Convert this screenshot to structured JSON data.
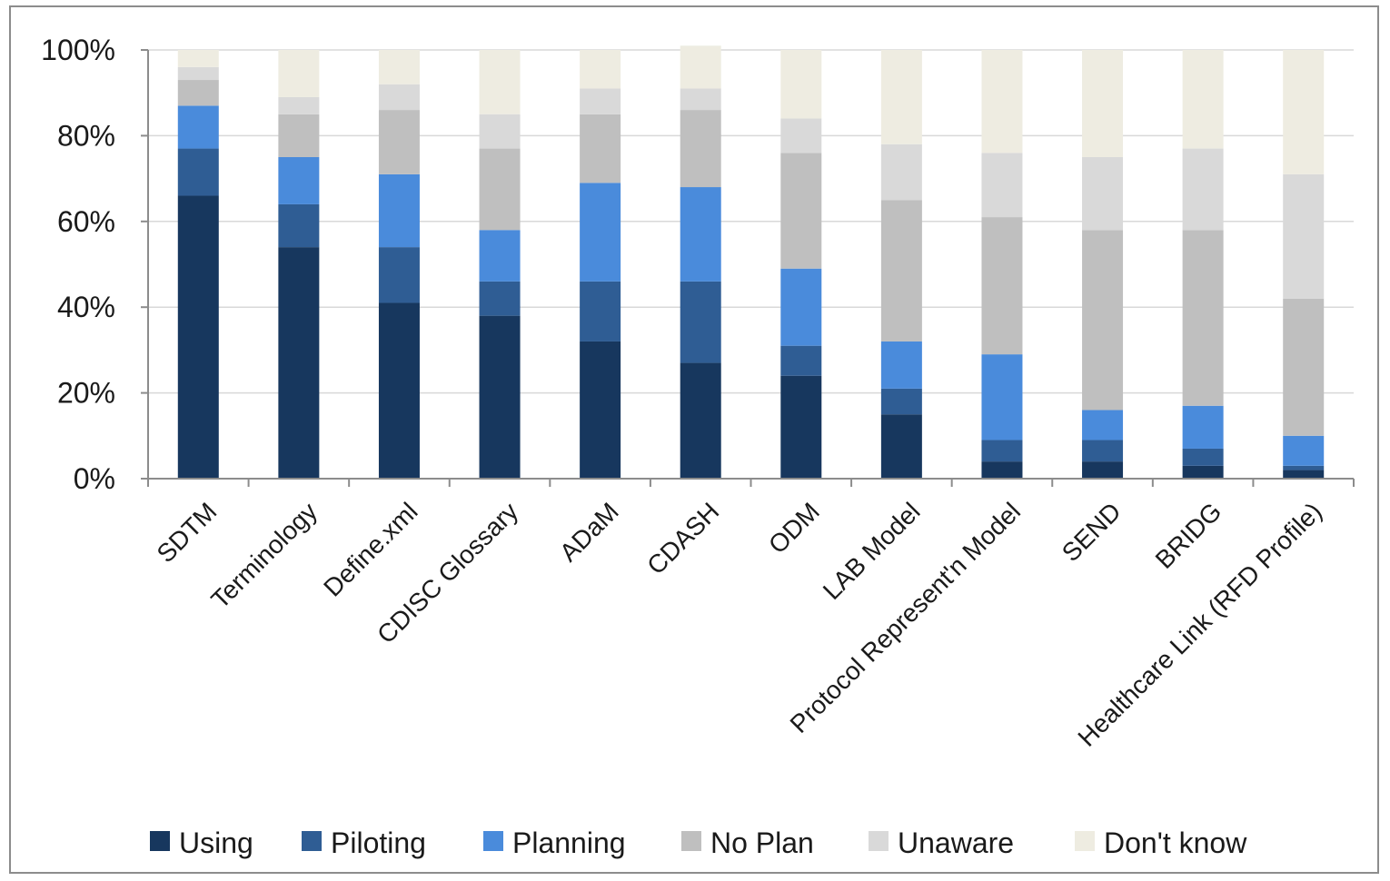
{
  "chart_data": {
    "type": "bar",
    "stacked": true,
    "percent_stacked": true,
    "categories": [
      "SDTM",
      "Terminology",
      "Define.xml",
      "CDISC Glossary",
      "ADaM",
      "CDASH",
      "ODM",
      "LAB Model",
      "Protocol Represent'n Model",
      "SEND",
      "BRIDG",
      "Healthcare Link (RFD Profile)"
    ],
    "series": [
      {
        "name": "Using",
        "color": "#17375e",
        "values": [
          66,
          54,
          41,
          38,
          32,
          27,
          24,
          15,
          4,
          4,
          3,
          2
        ]
      },
      {
        "name": "Piloting",
        "color": "#2f5d94",
        "values": [
          11,
          10,
          13,
          8,
          14,
          19,
          7,
          6,
          5,
          5,
          4,
          1
        ]
      },
      {
        "name": "Planning",
        "color": "#4a8bdb",
        "values": [
          10,
          11,
          17,
          12,
          23,
          22,
          18,
          11,
          20,
          7,
          10,
          7
        ]
      },
      {
        "name": "No Plan",
        "color": "#bfbfbf",
        "values": [
          6,
          10,
          15,
          19,
          16,
          18,
          27,
          33,
          32,
          42,
          41,
          32
        ]
      },
      {
        "name": "Unaware",
        "color": "#d9d9d9",
        "values": [
          3,
          4,
          6,
          8,
          6,
          5,
          8,
          13,
          15,
          17,
          19,
          29
        ]
      },
      {
        "name": "Don't know",
        "color": "#eeece1",
        "values": [
          4,
          11,
          8,
          15,
          9,
          10,
          16,
          22,
          24,
          25,
          23,
          29
        ]
      }
    ],
    "yticks": [
      "0%",
      "20%",
      "40%",
      "60%",
      "80%",
      "100%"
    ],
    "ylim": [
      0,
      100
    ],
    "grid": true,
    "legend_position": "bottom"
  }
}
